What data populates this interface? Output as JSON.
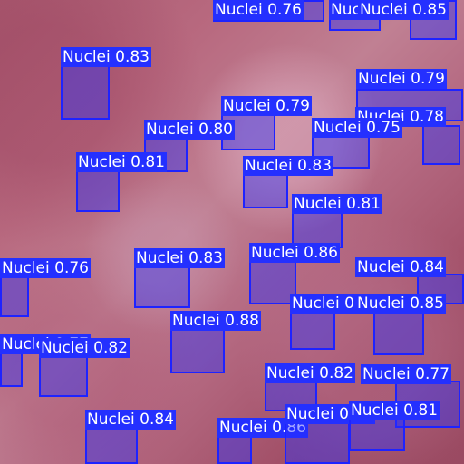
{
  "image": {
    "description_colors": {
      "box_stroke": "#1e23ff",
      "box_fill": "rgba(40,45,255,0.42)",
      "label_bg": "#2430ff",
      "label_text": "#ffffff"
    }
  },
  "detections": [
    {
      "label": "Nuclei 0.76"
    },
    {
      "label": "Nuclei 0.85"
    },
    {
      "label": "Nuclei 0.85"
    },
    {
      "label": "Nuclei 0.83"
    },
    {
      "label": "Nuclei 0.79"
    },
    {
      "label": "Nuclei 0.79"
    },
    {
      "label": "Nuclei 0.78"
    },
    {
      "label": "Nuclei 0.75"
    },
    {
      "label": "Nuclei 0.80"
    },
    {
      "label": "Nuclei 0.81"
    },
    {
      "label": "Nuclei 0.83"
    },
    {
      "label": "Nuclei 0.81"
    },
    {
      "label": "Nuclei 0.76"
    },
    {
      "label": "Nuclei 0.83"
    },
    {
      "label": "Nuclei 0.86"
    },
    {
      "label": "Nuclei 0.84"
    },
    {
      "label": "Nuclei 0.85"
    },
    {
      "label": "Nuclei 0.85"
    },
    {
      "label": "Nuclei 0.88"
    },
    {
      "label": "Nuclei 0.77"
    },
    {
      "label": "Nuclei 0.82"
    },
    {
      "label": "Nuclei 0.82"
    },
    {
      "label": "Nuclei 0.77"
    },
    {
      "label": "Nuclei 0.84"
    },
    {
      "label": "Nuclei 0.86"
    },
    {
      "label": "Nuclei 0.87"
    },
    {
      "label": "Nuclei 0.81"
    }
  ]
}
